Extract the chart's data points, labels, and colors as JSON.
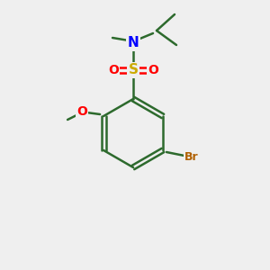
{
  "bg_color": "#efefef",
  "bond_color": "#2d6a2d",
  "bond_lw": 1.8,
  "atom_colors": {
    "N": "#0000ff",
    "S": "#ccaa00",
    "O": "#ff0000",
    "Br": "#b06000",
    "C": "#2d6a2d"
  },
  "font_size": 9,
  "label_font_size": 9
}
